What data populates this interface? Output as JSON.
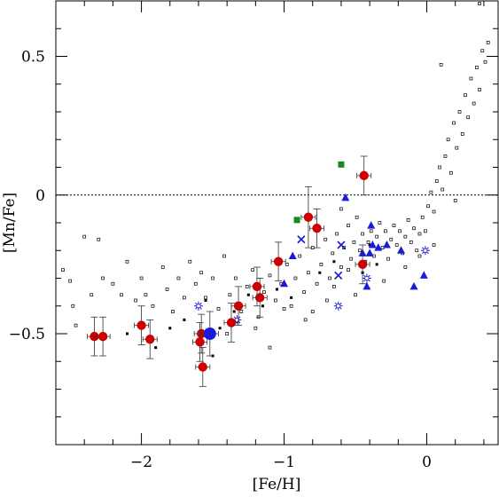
{
  "chart_data": {
    "type": "scatter",
    "title": "",
    "xlabel": "[Fe/H]",
    "ylabel": "[Mn/Fe]",
    "xlim": [
      -2.6,
      0.5
    ],
    "ylim": [
      -0.9,
      0.7
    ],
    "xticks": [
      {
        "value": -2,
        "label": "−2"
      },
      {
        "value": -1,
        "label": "−1"
      },
      {
        "value": 0,
        "label": "0"
      }
    ],
    "yticks": [
      {
        "value": -0.5,
        "label": "−0.5"
      },
      {
        "value": 0,
        "label": "0"
      },
      {
        "value": 0.5,
        "label": "0.5"
      }
    ],
    "reference_line": {
      "y": 0,
      "style": "dotted"
    },
    "grid": false,
    "legend": "none",
    "colors": {
      "red_circles": "#cc0000",
      "blue_circle": "#1a1adc",
      "blue_triangles": "#1a1adc",
      "blue_crosses": "#1a1adc",
      "blue_stars": "#1a1adc",
      "green_squares": "#1a8a1a",
      "background_points": "#000000"
    },
    "series": [
      {
        "marker": "circle-errorbar",
        "color_key": "red_circles",
        "points": [
          {
            "x": -2.33,
            "y": -0.51,
            "xerr": 0.05,
            "yerr": 0.07
          },
          {
            "x": -2.27,
            "y": -0.51,
            "xerr": 0.05,
            "yerr": 0.07
          },
          {
            "x": -2.0,
            "y": -0.47,
            "xerr": 0.05,
            "yerr": 0.07
          },
          {
            "x": -1.94,
            "y": -0.52,
            "xerr": 0.05,
            "yerr": 0.07
          },
          {
            "x": -1.58,
            "y": -0.5,
            "xerr": 0.05,
            "yerr": 0.07
          },
          {
            "x": -1.59,
            "y": -0.53,
            "xerr": 0.05,
            "yerr": 0.07
          },
          {
            "x": -1.57,
            "y": -0.62,
            "xerr": 0.05,
            "yerr": 0.07
          },
          {
            "x": -1.37,
            "y": -0.46,
            "xerr": 0.05,
            "yerr": 0.07
          },
          {
            "x": -1.32,
            "y": -0.4,
            "xerr": 0.05,
            "yerr": 0.07
          },
          {
            "x": -1.17,
            "y": -0.37,
            "xerr": 0.05,
            "yerr": 0.07
          },
          {
            "x": -1.19,
            "y": -0.33,
            "xerr": 0.05,
            "yerr": 0.07
          },
          {
            "x": -1.04,
            "y": -0.24,
            "xerr": 0.05,
            "yerr": 0.07
          },
          {
            "x": -0.83,
            "y": -0.08,
            "xerr": 0.05,
            "yerr": 0.11
          },
          {
            "x": -0.77,
            "y": -0.12,
            "xerr": 0.05,
            "yerr": 0.07
          },
          {
            "x": -0.45,
            "y": -0.25,
            "xerr": 0.05,
            "yerr": 0.07
          },
          {
            "x": -0.44,
            "y": 0.07,
            "xerr": 0.05,
            "yerr": 0.07
          }
        ]
      },
      {
        "marker": "big-circle-errorbar",
        "color_key": "blue_circle",
        "points": [
          {
            "x": -1.52,
            "y": -0.5,
            "xerr": 0.06,
            "yerr": 0.08
          }
        ]
      },
      {
        "marker": "triangle",
        "color_key": "blue_triangles",
        "points": [
          {
            "x": -1.0,
            "y": -0.32
          },
          {
            "x": -0.94,
            "y": -0.22
          },
          {
            "x": -0.57,
            "y": -0.01
          },
          {
            "x": -0.45,
            "y": -0.21
          },
          {
            "x": -0.42,
            "y": -0.33
          },
          {
            "x": -0.39,
            "y": -0.11
          },
          {
            "x": -0.38,
            "y": -0.18
          },
          {
            "x": -0.4,
            "y": -0.21
          },
          {
            "x": -0.28,
            "y": -0.18
          },
          {
            "x": -0.18,
            "y": -0.2
          },
          {
            "x": -0.09,
            "y": -0.33
          },
          {
            "x": -0.02,
            "y": -0.29
          },
          {
            "x": -0.34,
            "y": -0.19
          }
        ]
      },
      {
        "marker": "cross",
        "color_key": "blue_crosses",
        "points": [
          {
            "x": -0.88,
            "y": -0.16
          },
          {
            "x": -0.62,
            "y": -0.29
          },
          {
            "x": -0.6,
            "y": -0.18
          }
        ]
      },
      {
        "marker": "star",
        "color_key": "blue_stars",
        "points": [
          {
            "x": -1.6,
            "y": -0.4
          },
          {
            "x": -1.33,
            "y": -0.45
          },
          {
            "x": -0.62,
            "y": -0.4
          },
          {
            "x": -0.42,
            "y": -0.3
          },
          {
            "x": -0.01,
            "y": -0.2
          }
        ]
      },
      {
        "marker": "square",
        "color_key": "green_squares",
        "points": [
          {
            "x": -0.6,
            "y": 0.11
          },
          {
            "x": -0.91,
            "y": -0.09
          }
        ]
      },
      {
        "marker": "small-open-square",
        "color_key": "background_points",
        "points": [
          {
            "x": -2.55,
            "y": -0.27
          },
          {
            "x": -2.5,
            "y": -0.31
          },
          {
            "x": -2.48,
            "y": -0.4
          },
          {
            "x": -2.46,
            "y": -0.47
          },
          {
            "x": -2.4,
            "y": -0.15
          },
          {
            "x": -2.35,
            "y": -0.36
          },
          {
            "x": -2.3,
            "y": -0.16
          },
          {
            "x": -2.27,
            "y": -0.3
          },
          {
            "x": -2.2,
            "y": -0.32
          },
          {
            "x": -2.14,
            "y": -0.36
          },
          {
            "x": -2.1,
            "y": -0.24
          },
          {
            "x": -2.04,
            "y": -0.38
          },
          {
            "x": -2.0,
            "y": -0.3
          },
          {
            "x": -1.97,
            "y": -0.36
          },
          {
            "x": -1.92,
            "y": -0.4
          },
          {
            "x": -1.85,
            "y": -0.26
          },
          {
            "x": -1.82,
            "y": -0.34
          },
          {
            "x": -1.78,
            "y": -0.42
          },
          {
            "x": -1.74,
            "y": -0.3
          },
          {
            "x": -1.7,
            "y": -0.37
          },
          {
            "x": -1.66,
            "y": -0.24
          },
          {
            "x": -1.62,
            "y": -0.32
          },
          {
            "x": -1.58,
            "y": -0.28
          },
          {
            "x": -1.55,
            "y": -0.37
          },
          {
            "x": -1.5,
            "y": -0.3
          },
          {
            "x": -1.46,
            "y": -0.41
          },
          {
            "x": -1.42,
            "y": -0.22
          },
          {
            "x": -1.38,
            "y": -0.36
          },
          {
            "x": -1.34,
            "y": -0.3
          },
          {
            "x": -1.3,
            "y": -0.42
          },
          {
            "x": -1.26,
            "y": -0.33
          },
          {
            "x": -1.22,
            "y": -0.27
          },
          {
            "x": -1.18,
            "y": -0.44
          },
          {
            "x": -1.14,
            "y": -0.35
          },
          {
            "x": -1.1,
            "y": -0.29
          },
          {
            "x": -1.06,
            "y": -0.38
          },
          {
            "x": -1.02,
            "y": -0.32
          },
          {
            "x": -0.98,
            "y": -0.25
          },
          {
            "x": -0.95,
            "y": -0.4
          },
          {
            "x": -0.92,
            "y": -0.3
          },
          {
            "x": -0.89,
            "y": -0.22
          },
          {
            "x": -0.86,
            "y": -0.35
          },
          {
            "x": -0.83,
            "y": -0.28
          },
          {
            "x": -0.8,
            "y": -0.19
          },
          {
            "x": -0.77,
            "y": -0.32
          },
          {
            "x": -0.74,
            "y": -0.25
          },
          {
            "x": -0.71,
            "y": -0.16
          },
          {
            "x": -0.68,
            "y": -0.3
          },
          {
            "x": -0.66,
            "y": -0.21
          },
          {
            "x": -0.63,
            "y": -0.14
          },
          {
            "x": -0.6,
            "y": -0.26
          },
          {
            "x": -0.58,
            "y": -0.19
          },
          {
            "x": -0.55,
            "y": -0.11
          },
          {
            "x": -0.53,
            "y": -0.23
          },
          {
            "x": -0.51,
            "y": -0.17
          },
          {
            "x": -0.49,
            "y": -0.08
          },
          {
            "x": -0.47,
            "y": -0.2
          },
          {
            "x": -0.45,
            "y": -0.14
          },
          {
            "x": -0.43,
            "y": -0.24
          },
          {
            "x": -0.41,
            "y": -0.17
          },
          {
            "x": -0.39,
            "y": -0.13
          },
          {
            "x": -0.37,
            "y": -0.22
          },
          {
            "x": -0.35,
            "y": -0.15
          },
          {
            "x": -0.33,
            "y": -0.1
          },
          {
            "x": -0.31,
            "y": -0.19
          },
          {
            "x": -0.29,
            "y": -0.13
          },
          {
            "x": -0.27,
            "y": -0.23
          },
          {
            "x": -0.25,
            "y": -0.16
          },
          {
            "x": -0.23,
            "y": -0.11
          },
          {
            "x": -0.21,
            "y": -0.18
          },
          {
            "x": -0.19,
            "y": -0.13
          },
          {
            "x": -0.17,
            "y": -0.21
          },
          {
            "x": -0.15,
            "y": -0.15
          },
          {
            "x": -0.13,
            "y": -0.09
          },
          {
            "x": -0.11,
            "y": -0.17
          },
          {
            "x": -0.09,
            "y": -0.12
          },
          {
            "x": -0.07,
            "y": -0.2
          },
          {
            "x": -0.05,
            "y": -0.14
          },
          {
            "x": -0.03,
            "y": -0.08
          },
          {
            "x": -0.01,
            "y": -0.13
          },
          {
            "x": 0.01,
            "y": -0.04
          },
          {
            "x": 0.03,
            "y": 0.01
          },
          {
            "x": 0.05,
            "y": -0.06
          },
          {
            "x": 0.07,
            "y": 0.05
          },
          {
            "x": 0.09,
            "y": 0.1
          },
          {
            "x": 0.11,
            "y": 0.02
          },
          {
            "x": 0.13,
            "y": 0.14
          },
          {
            "x": 0.15,
            "y": 0.2
          },
          {
            "x": 0.17,
            "y": 0.08
          },
          {
            "x": 0.19,
            "y": 0.26
          },
          {
            "x": 0.21,
            "y": 0.17
          },
          {
            "x": 0.23,
            "y": 0.3
          },
          {
            "x": 0.25,
            "y": 0.22
          },
          {
            "x": 0.27,
            "y": 0.36
          },
          {
            "x": 0.29,
            "y": 0.28
          },
          {
            "x": 0.31,
            "y": 0.42
          },
          {
            "x": 0.33,
            "y": 0.33
          },
          {
            "x": 0.35,
            "y": 0.46
          },
          {
            "x": 0.37,
            "y": 0.38
          },
          {
            "x": 0.39,
            "y": 0.52
          },
          {
            "x": 0.41,
            "y": 0.48
          },
          {
            "x": 0.43,
            "y": 0.55
          },
          {
            "x": 0.1,
            "y": 0.47
          },
          {
            "x": 0.37,
            "y": 0.69
          },
          {
            "x": 0.2,
            "y": -0.02
          },
          {
            "x": -0.6,
            "y": -0.05
          },
          {
            "x": -0.7,
            "y": -0.38
          },
          {
            "x": -0.85,
            "y": -0.45
          },
          {
            "x": -1.0,
            "y": -0.41
          },
          {
            "x": -1.2,
            "y": -0.48
          },
          {
            "x": -1.4,
            "y": -0.5
          },
          {
            "x": -1.1,
            "y": -0.55
          },
          {
            "x": -0.8,
            "y": -0.42
          },
          {
            "x": -0.5,
            "y": -0.36
          },
          {
            "x": -0.3,
            "y": -0.31
          },
          {
            "x": -0.15,
            "y": -0.26
          },
          {
            "x": -0.05,
            "y": -0.22
          },
          {
            "x": 0.05,
            "y": -0.18
          },
          {
            "x": -0.55,
            "y": -0.27
          },
          {
            "x": -0.65,
            "y": -0.33
          }
        ]
      },
      {
        "marker": "small-filled-square",
        "color_key": "background_points",
        "points": [
          {
            "x": -2.1,
            "y": -0.5
          },
          {
            "x": -1.9,
            "y": -0.55
          },
          {
            "x": -1.7,
            "y": -0.45
          },
          {
            "x": -1.55,
            "y": -0.38
          },
          {
            "x": -1.45,
            "y": -0.48
          },
          {
            "x": -1.35,
            "y": -0.42
          },
          {
            "x": -1.25,
            "y": -0.36
          },
          {
            "x": -1.15,
            "y": -0.4
          },
          {
            "x": -1.05,
            "y": -0.34
          },
          {
            "x": -0.95,
            "y": -0.37
          },
          {
            "x": -0.75,
            "y": -0.28
          },
          {
            "x": -0.65,
            "y": -0.24
          },
          {
            "x": -0.45,
            "y": -0.28
          },
          {
            "x": -0.4,
            "y": -0.18
          },
          {
            "x": -0.35,
            "y": -0.25
          },
          {
            "x": -1.5,
            "y": -0.58
          },
          {
            "x": -1.6,
            "y": -0.52
          },
          {
            "x": -1.8,
            "y": -0.48
          }
        ]
      }
    ]
  }
}
